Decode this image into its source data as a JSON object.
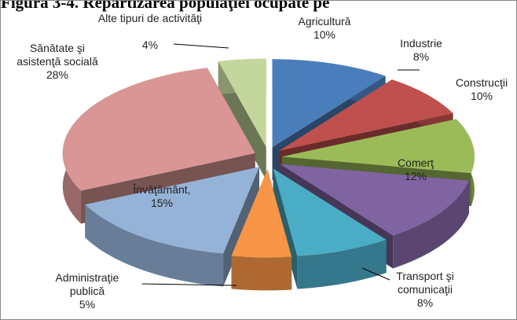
{
  "chart_data": {
    "type": "pie3d",
    "title": "Figura 3-4. Repartizarea populaţiei ocupate pe",
    "categories": [
      "Agricultură",
      "Industrie",
      "Construcţii",
      "Comerţ",
      "Transport şi comunicaţii",
      "Administraţie publică",
      "Învăţământ,",
      "Sănătate şi asistenţă socială",
      "Alte tipuri de activităţi"
    ],
    "values": [
      10,
      8,
      10,
      12,
      8,
      5,
      15,
      28,
      4
    ],
    "value_labels": [
      "10%",
      "8%",
      "10%",
      "12%",
      "8%",
      "5%",
      "15%",
      "28%",
      "4%"
    ],
    "colors": [
      "#4a7ebb",
      "#c0504d",
      "#9bbb59",
      "#8064a2",
      "#4bacc6",
      "#f79646",
      "#95b3d7",
      "#d99694",
      "#c3d69b"
    ]
  }
}
